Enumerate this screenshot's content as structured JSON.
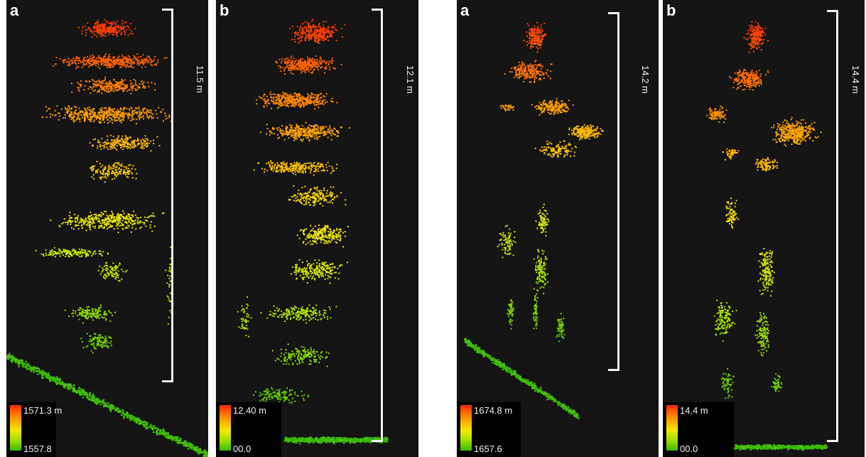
{
  "figure": {
    "panels": [
      {
        "label": "a",
        "height_label": "11.5 m",
        "legend_max": "1571.3 m",
        "legend_min": "1557.8"
      },
      {
        "label": "b",
        "height_label": "12.1 m",
        "legend_max": "12.40 m",
        "legend_min": "00.0"
      },
      {
        "label": "a",
        "height_label": "14.2 m",
        "legend_max": "1674.8 m",
        "legend_min": "1657.6"
      },
      {
        "label": "b",
        "height_label": "14.4 m",
        "legend_max": "14.4 m",
        "legend_min": "00.0"
      }
    ],
    "colormap": [
      "#3ab800",
      "#9ee000",
      "#f5e800",
      "#ff9a00",
      "#ff2a00"
    ]
  }
}
